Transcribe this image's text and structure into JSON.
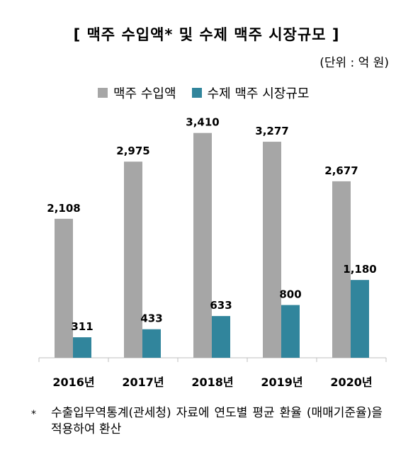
{
  "title": "[ 맥주 수입액* 및 수제 맥주 시장규모 ]",
  "unit": "(단위 : 억 원)",
  "footnote_mark": "*",
  "footnote": "수출입무역통계(관세청) 자료에 연도별 평균 환율 (매매기준율)을 적용하여 환산",
  "chart_data": {
    "type": "bar",
    "title": "[ 맥주 수입액* 및 수제 맥주 시장규모 ]",
    "categories": [
      "2016년",
      "2017년",
      "2018년",
      "2019년",
      "2020년"
    ],
    "series": [
      {
        "name": "맥주 수입액",
        "color": "#a6a6a6",
        "values": [
          2108,
          2975,
          3410,
          3277,
          2677
        ],
        "labels": [
          "2,108",
          "2,975",
          "3,410",
          "3,277",
          "2,677"
        ]
      },
      {
        "name": "수제 맥주 시장규모",
        "color": "#31859c",
        "values": [
          311,
          433,
          633,
          800,
          1180
        ],
        "labels": [
          "311",
          "433",
          "633",
          "800",
          "1,180"
        ]
      }
    ],
    "ylim": [
      0,
      3600
    ],
    "grid": false,
    "legend": "top"
  }
}
